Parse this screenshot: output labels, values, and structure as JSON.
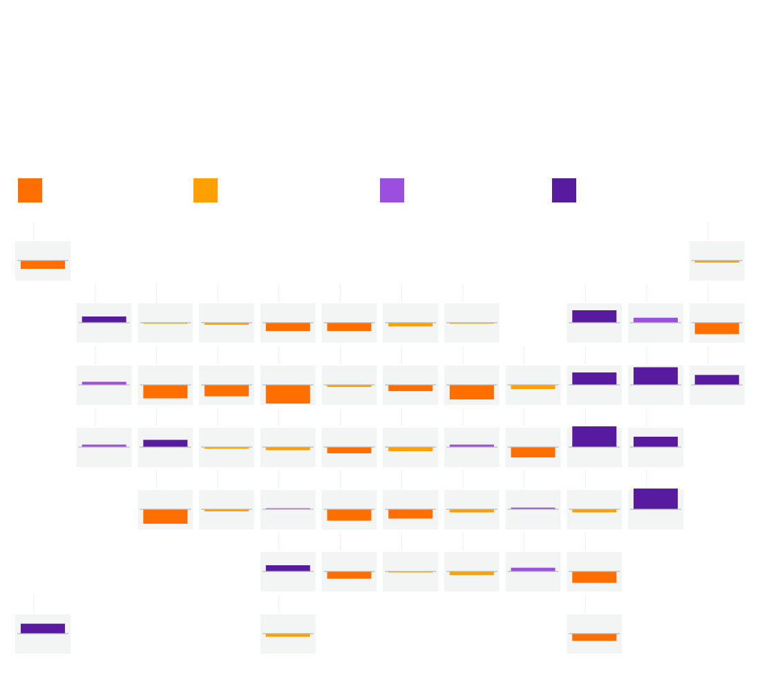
{
  "chart_data": {
    "type": "bar",
    "title": "",
    "subtitle": "",
    "layout": "tile-grid-map",
    "baseline": 0,
    "value_range": [
      -1,
      1
    ],
    "legend": {
      "placement": "top",
      "entries": [
        {
          "key": "c1",
          "label": "",
          "color": "#ff6f00"
        },
        {
          "key": "c2",
          "label": "",
          "color": "#ffa000"
        },
        {
          "key": "c3",
          "label": "",
          "color": "#9c4fde"
        },
        {
          "key": "c4",
          "label": "",
          "color": "#581a9e"
        }
      ]
    },
    "tiles": [
      {
        "row": 0,
        "col": 0,
        "label": "",
        "value": -0.4,
        "cat": "c1"
      },
      {
        "row": 0,
        "col": 11,
        "label": "",
        "value": -0.1,
        "cat": "c2"
      },
      {
        "row": 1,
        "col": 1,
        "label": "",
        "value": 0.3,
        "cat": "c4"
      },
      {
        "row": 1,
        "col": 2,
        "label": "",
        "value": -0.05,
        "cat": "c2"
      },
      {
        "row": 1,
        "col": 3,
        "label": "",
        "value": -0.1,
        "cat": "c2"
      },
      {
        "row": 1,
        "col": 4,
        "label": "",
        "value": -0.4,
        "cat": "c1"
      },
      {
        "row": 1,
        "col": 5,
        "label": "",
        "value": -0.4,
        "cat": "c1"
      },
      {
        "row": 1,
        "col": 6,
        "label": "",
        "value": -0.18,
        "cat": "c2"
      },
      {
        "row": 1,
        "col": 7,
        "label": "",
        "value": -0.04,
        "cat": "c2"
      },
      {
        "row": 1,
        "col": 9,
        "label": "",
        "value": 0.6,
        "cat": "c4"
      },
      {
        "row": 1,
        "col": 10,
        "label": "",
        "value": 0.24,
        "cat": "c3"
      },
      {
        "row": 1,
        "col": 11,
        "label": "",
        "value": -0.55,
        "cat": "c1"
      },
      {
        "row": 2,
        "col": 1,
        "label": "",
        "value": 0.15,
        "cat": "c3"
      },
      {
        "row": 2,
        "col": 2,
        "label": "",
        "value": -0.65,
        "cat": "c1"
      },
      {
        "row": 2,
        "col": 3,
        "label": "",
        "value": -0.55,
        "cat": "c1"
      },
      {
        "row": 2,
        "col": 4,
        "label": "",
        "value": -0.9,
        "cat": "c1"
      },
      {
        "row": 2,
        "col": 5,
        "label": "",
        "value": -0.1,
        "cat": "c2"
      },
      {
        "row": 2,
        "col": 6,
        "label": "",
        "value": -0.3,
        "cat": "c1"
      },
      {
        "row": 2,
        "col": 7,
        "label": "",
        "value": -0.7,
        "cat": "c1"
      },
      {
        "row": 2,
        "col": 8,
        "label": "",
        "value": -0.2,
        "cat": "c2"
      },
      {
        "row": 2,
        "col": 9,
        "label": "",
        "value": 0.6,
        "cat": "c4"
      },
      {
        "row": 2,
        "col": 10,
        "label": "",
        "value": 0.85,
        "cat": "c4"
      },
      {
        "row": 2,
        "col": 11,
        "label": "",
        "value": 0.48,
        "cat": "c4"
      },
      {
        "row": 3,
        "col": 1,
        "label": "",
        "value": 0.12,
        "cat": "c3"
      },
      {
        "row": 3,
        "col": 2,
        "label": "",
        "value": 0.35,
        "cat": "c4"
      },
      {
        "row": 3,
        "col": 3,
        "label": "",
        "value": -0.08,
        "cat": "c2"
      },
      {
        "row": 3,
        "col": 4,
        "label": "",
        "value": -0.15,
        "cat": "c2"
      },
      {
        "row": 3,
        "col": 5,
        "label": "",
        "value": -0.3,
        "cat": "c1"
      },
      {
        "row": 3,
        "col": 6,
        "label": "",
        "value": -0.2,
        "cat": "c2"
      },
      {
        "row": 3,
        "col": 7,
        "label": "",
        "value": 0.12,
        "cat": "c3"
      },
      {
        "row": 3,
        "col": 8,
        "label": "",
        "value": -0.5,
        "cat": "c1"
      },
      {
        "row": 3,
        "col": 9,
        "label": "",
        "value": 1.0,
        "cat": "c4"
      },
      {
        "row": 3,
        "col": 10,
        "label": "",
        "value": 0.5,
        "cat": "c4"
      },
      {
        "row": 4,
        "col": 2,
        "label": "",
        "value": -0.7,
        "cat": "c1"
      },
      {
        "row": 4,
        "col": 3,
        "label": "",
        "value": -0.1,
        "cat": "c2"
      },
      {
        "row": 4,
        "col": 4,
        "label": "",
        "value": 0.04,
        "cat": "c3"
      },
      {
        "row": 4,
        "col": 5,
        "label": "",
        "value": -0.55,
        "cat": "c1"
      },
      {
        "row": 4,
        "col": 6,
        "label": "",
        "value": -0.45,
        "cat": "c1"
      },
      {
        "row": 4,
        "col": 7,
        "label": "",
        "value": -0.15,
        "cat": "c2"
      },
      {
        "row": 4,
        "col": 8,
        "label": "",
        "value": 0.08,
        "cat": "c3"
      },
      {
        "row": 4,
        "col": 9,
        "label": "",
        "value": -0.15,
        "cat": "c2"
      },
      {
        "row": 4,
        "col": 10,
        "label": "",
        "value": 1.0,
        "cat": "c4"
      },
      {
        "row": 5,
        "col": 4,
        "label": "",
        "value": 0.3,
        "cat": "c4"
      },
      {
        "row": 5,
        "col": 5,
        "label": "",
        "value": -0.35,
        "cat": "c1"
      },
      {
        "row": 5,
        "col": 6,
        "label": "",
        "value": -0.02,
        "cat": "c2"
      },
      {
        "row": 5,
        "col": 7,
        "label": "",
        "value": -0.18,
        "cat": "c2"
      },
      {
        "row": 5,
        "col": 8,
        "label": "",
        "value": 0.18,
        "cat": "c3"
      },
      {
        "row": 5,
        "col": 9,
        "label": "",
        "value": -0.55,
        "cat": "c1"
      },
      {
        "row": 6,
        "col": 0,
        "label": "",
        "value": 0.48,
        "cat": "c4"
      },
      {
        "row": 6,
        "col": 4,
        "label": "",
        "value": -0.15,
        "cat": "c2"
      },
      {
        "row": 6,
        "col": 9,
        "label": "",
        "value": -0.35,
        "cat": "c1"
      }
    ]
  }
}
